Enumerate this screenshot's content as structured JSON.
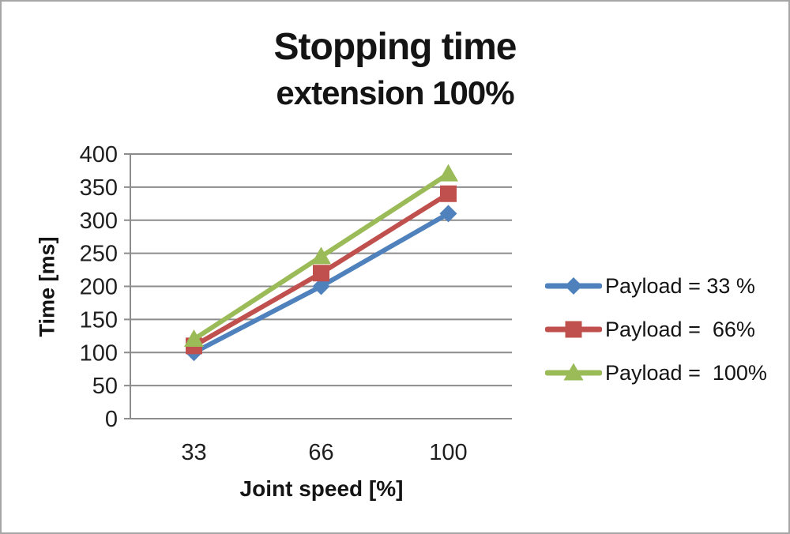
{
  "title": "Stopping time",
  "subtitle": "extension 100%",
  "chart_data": {
    "type": "line",
    "title": "Stopping time",
    "subtitle": "extension 100%",
    "categories": [
      "33",
      "66",
      "100"
    ],
    "series": [
      {
        "name": "Payload = 33 %",
        "values": [
          100,
          200,
          310
        ],
        "color": "#4F81BD",
        "marker": "diamond"
      },
      {
        "name": "Payload =  66%",
        "values": [
          110,
          220,
          340
        ],
        "color": "#C0504D",
        "marker": "square"
      },
      {
        "name": "Payload =  100%",
        "values": [
          120,
          245,
          370
        ],
        "color": "#9BBB59",
        "marker": "triangle"
      }
    ],
    "xlabel": "Joint speed [%]",
    "ylabel": "Time [ms]",
    "ylim": [
      0,
      400
    ],
    "ytick_step": 50,
    "yticks": [
      400,
      350,
      300,
      250,
      200,
      150,
      100,
      50,
      0
    ],
    "grid": true,
    "legend_position": "right",
    "gridline_color": "#8c8c8c",
    "axis_color": "#8c8c8c",
    "text_color": "#1f1f1f",
    "background_color": "#ffffff"
  }
}
